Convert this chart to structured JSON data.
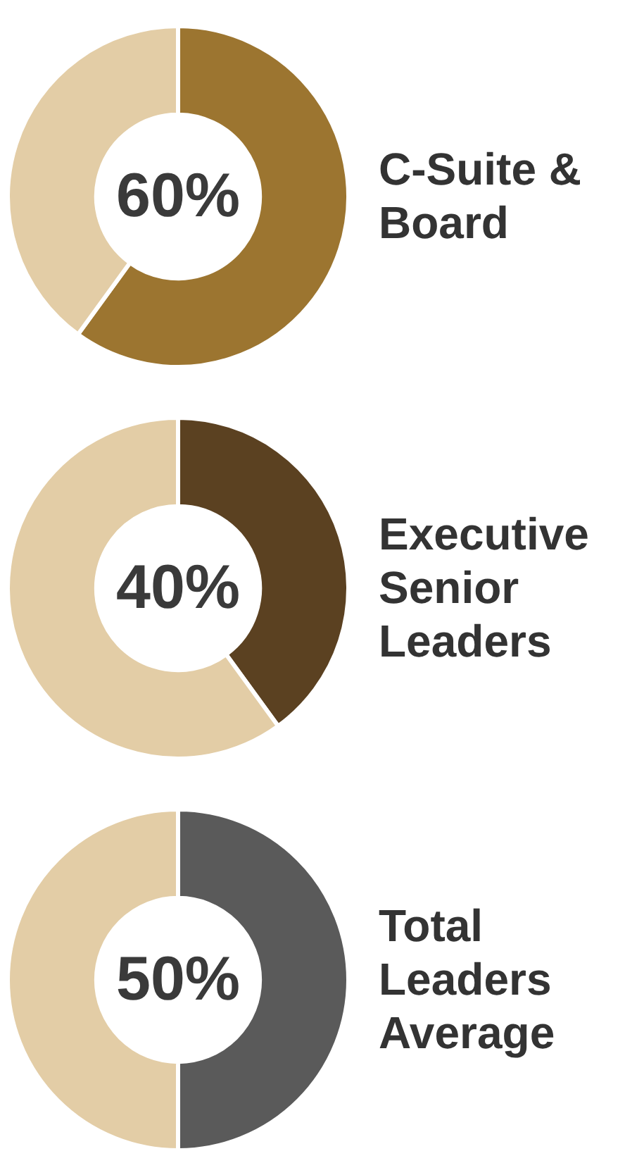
{
  "chart_data": [
    {
      "type": "donut",
      "title": "C-Suite & Board",
      "categories": [
        null,
        null
      ],
      "values": [
        60,
        40
      ],
      "colors": [
        "#9c7530",
        "#e3cda6"
      ],
      "value_labels": [
        "60%",
        null
      ]
    },
    {
      "type": "donut",
      "title": "Executive Senior Leaders",
      "categories": [
        null,
        null
      ],
      "values": [
        40,
        60
      ],
      "colors": [
        "#5b4121",
        "#e3cda6"
      ],
      "value_labels": [
        "40%",
        null
      ]
    },
    {
      "type": "donut",
      "title": "Total Leaders Average",
      "categories": [
        null,
        null
      ],
      "values": [
        50,
        50
      ],
      "colors": [
        "#5a5a5a",
        "#e3cda6"
      ],
      "value_labels": [
        "50%",
        null
      ]
    }
  ]
}
